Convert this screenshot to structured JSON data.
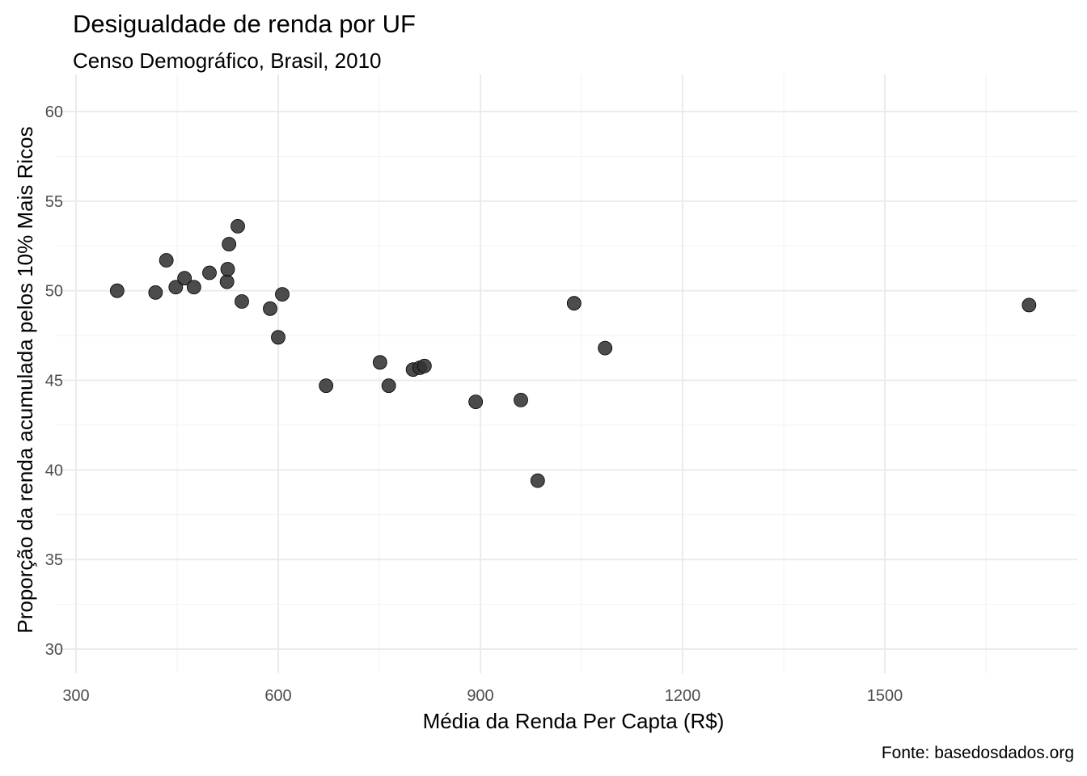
{
  "chart_data": {
    "type": "scatter",
    "title": "Desigualdade de renda por UF",
    "subtitle": "Censo Demográfico, Brasil, 2010",
    "caption": "Fonte: basedosdados.org",
    "xlabel": "Média da Renda Per Capta (R$)",
    "ylabel": "Proporção da renda acumulada pelos 10% Mais Ricos",
    "xlim": [
      300,
      1750
    ],
    "ylim": [
      30,
      60
    ],
    "xticks": [
      300,
      600,
      900,
      1200,
      1500
    ],
    "yticks": [
      30,
      35,
      40,
      45,
      50,
      55,
      60
    ],
    "grid": true,
    "point_color": "#333333",
    "points": [
      {
        "x": 361,
        "y": 50.0
      },
      {
        "x": 418,
        "y": 49.9
      },
      {
        "x": 434,
        "y": 51.7
      },
      {
        "x": 448,
        "y": 50.2
      },
      {
        "x": 461,
        "y": 50.7
      },
      {
        "x": 475,
        "y": 50.2
      },
      {
        "x": 498,
        "y": 51.0
      },
      {
        "x": 524,
        "y": 50.5
      },
      {
        "x": 525,
        "y": 51.2
      },
      {
        "x": 527,
        "y": 52.6
      },
      {
        "x": 540,
        "y": 53.6
      },
      {
        "x": 546,
        "y": 49.4
      },
      {
        "x": 588,
        "y": 49.0
      },
      {
        "x": 600,
        "y": 47.4
      },
      {
        "x": 606,
        "y": 49.8
      },
      {
        "x": 671,
        "y": 44.7
      },
      {
        "x": 751,
        "y": 46.0
      },
      {
        "x": 764,
        "y": 44.7
      },
      {
        "x": 800,
        "y": 45.6
      },
      {
        "x": 810,
        "y": 45.7
      },
      {
        "x": 817,
        "y": 45.8
      },
      {
        "x": 893,
        "y": 43.8
      },
      {
        "x": 960,
        "y": 43.9
      },
      {
        "x": 985,
        "y": 39.4
      },
      {
        "x": 1039,
        "y": 49.3
      },
      {
        "x": 1085,
        "y": 46.8
      },
      {
        "x": 1714,
        "y": 49.2
      }
    ]
  }
}
